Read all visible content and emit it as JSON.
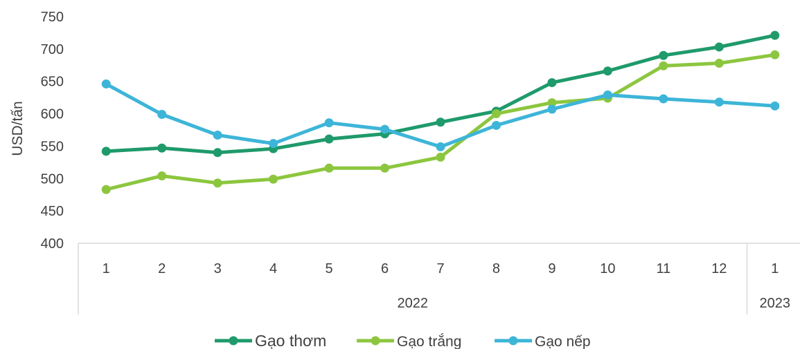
{
  "chart_data": {
    "type": "line",
    "ylabel": "USD/tấn",
    "ylim": [
      400,
      750
    ],
    "yticks": [
      400,
      450,
      500,
      550,
      600,
      650,
      700,
      750
    ],
    "grid": false,
    "legend_position": "bottom",
    "categories": [
      "1",
      "2",
      "3",
      "4",
      "5",
      "6",
      "7",
      "8",
      "9",
      "10",
      "11",
      "12",
      "1"
    ],
    "category_groups": [
      {
        "label": "2022",
        "count": 12
      },
      {
        "label": "2023",
        "count": 1
      }
    ],
    "series": [
      {
        "name": "Gạo thơm",
        "color": "#1f9a6b",
        "values": [
          542,
          547,
          540,
          546,
          561,
          569,
          587,
          604,
          648,
          666,
          690,
          703,
          721
        ]
      },
      {
        "name": "Gạo trắng",
        "color": "#8cc63f",
        "values": [
          483,
          504,
          493,
          499,
          516,
          516,
          533,
          600,
          617,
          624,
          674,
          678,
          691
        ]
      },
      {
        "name": "Gạo nếp",
        "color": "#3db5d8",
        "values": [
          646,
          599,
          567,
          554,
          586,
          576,
          549,
          582,
          607,
          629,
          623,
          618,
          612
        ]
      }
    ]
  }
}
